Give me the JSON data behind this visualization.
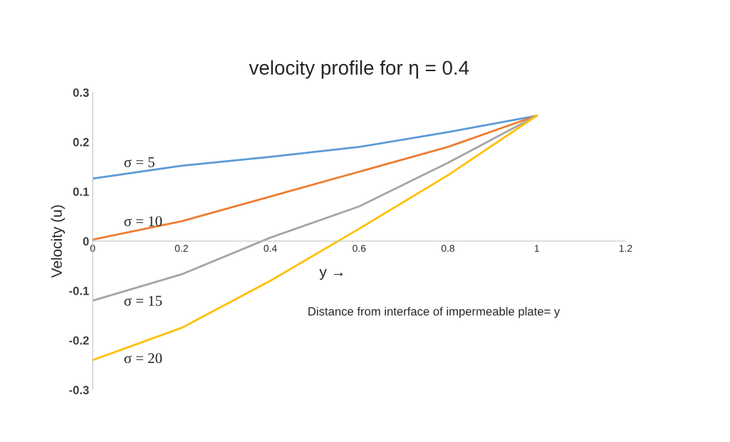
{
  "chart_data": {
    "type": "line",
    "title": "velocity profile for η = 0.4",
    "ylabel": "Velocity (u)",
    "xlabel": "y →",
    "annotations": [
      "Distance from interface of impermeable plate= y"
    ],
    "x": [
      0,
      0.2,
      0.4,
      0.6,
      0.8,
      1
    ],
    "series": [
      {
        "name": "σ = 5",
        "color": "#5b9bd5",
        "values": [
          0.126,
          0.152,
          0.17,
          0.19,
          0.22,
          0.253
        ]
      },
      {
        "name": "σ = 10",
        "color": "#ed7d31",
        "values": [
          0.003,
          0.04,
          0.09,
          0.14,
          0.19,
          0.253
        ]
      },
      {
        "name": "σ = 15",
        "color": "#a5a5a5",
        "values": [
          -0.12,
          -0.067,
          0.007,
          0.07,
          0.158,
          0.253
        ]
      },
      {
        "name": "σ = 20",
        "color": "#ffc000",
        "values": [
          -0.24,
          -0.175,
          -0.08,
          0.025,
          0.133,
          0.253
        ]
      }
    ],
    "xlim": [
      0,
      1.2
    ],
    "xticks": [
      0,
      0.2,
      0.4,
      0.6,
      0.8,
      1,
      1.2
    ],
    "ylim": [
      -0.3,
      0.3
    ],
    "yticks": [
      -0.3,
      -0.2,
      -0.1,
      0,
      0.1,
      0.2,
      0.3
    ],
    "grid": false,
    "legend": false,
    "marker": "none",
    "line_style": "solid"
  }
}
